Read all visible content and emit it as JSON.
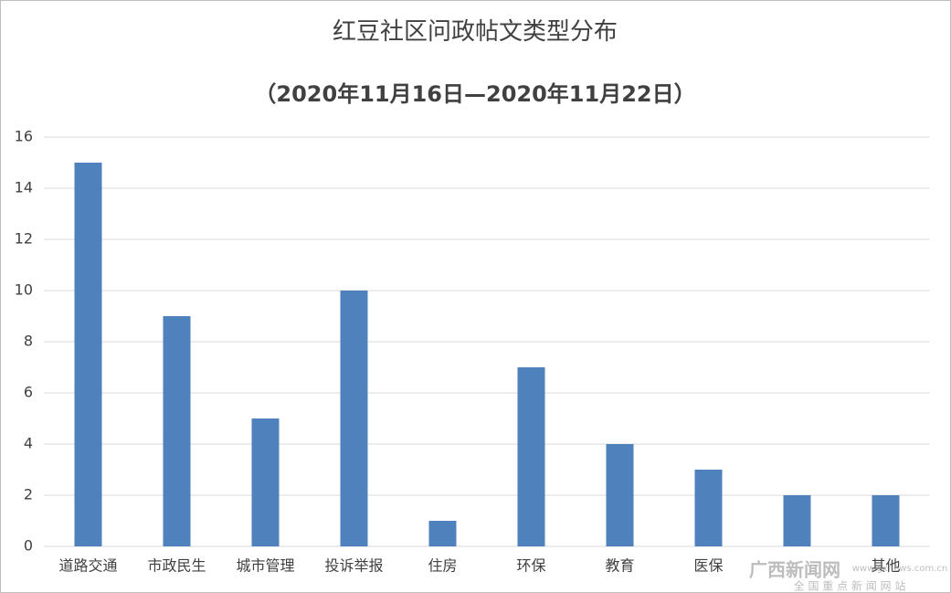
{
  "chart_data": {
    "type": "bar",
    "title": "红豆社区问政帖文类型分布",
    "subtitle": "（2020年11月16日—2020年11月22日）",
    "categories": [
      "道路交通",
      "市政民生",
      "城市管理",
      "投诉举报",
      "住房",
      "环保",
      "教育",
      "医保",
      null,
      "其他"
    ],
    "values": [
      15,
      9,
      5,
      10,
      1,
      7,
      4,
      3,
      2,
      2
    ],
    "color": "#4f81bd",
    "ylim": [
      0,
      16
    ],
    "yticks": [
      0,
      2,
      4,
      6,
      8,
      10,
      12,
      14,
      16
    ],
    "grid": true
  },
  "watermark": {
    "name": "广西新闻网",
    "tagline": "全 国 重 点 新 闻 网 站",
    "url": "www.gxnews.com.cn"
  }
}
